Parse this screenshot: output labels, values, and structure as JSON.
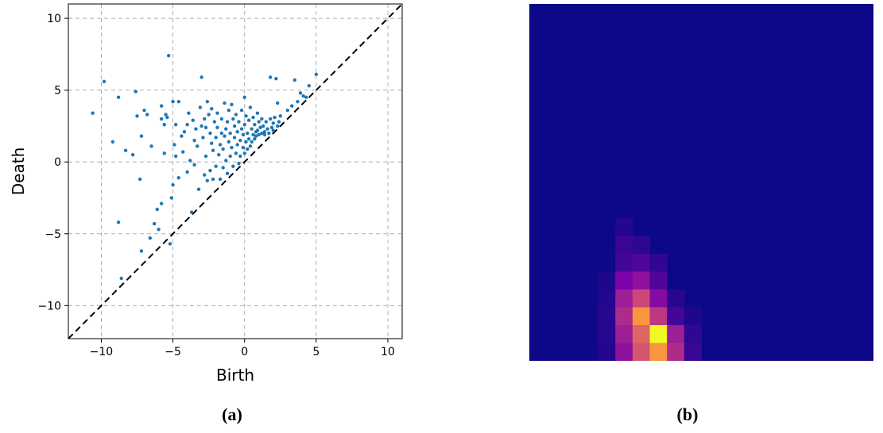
{
  "chart_data": [
    {
      "type": "scatter",
      "xlabel": "Birth",
      "ylabel": "Death",
      "xlim": [
        -12.3,
        11.0
      ],
      "ylim": [
        -12.3,
        11.0
      ],
      "xticks": [
        -10,
        -5,
        0,
        5,
        10
      ],
      "yticks": [
        -10,
        -5,
        0,
        5,
        10
      ],
      "grid": true,
      "diagonal": "dashed black line y = x",
      "point_color": "#1f77b4",
      "points": [
        [
          -10.6,
          3.4
        ],
        [
          -9.8,
          5.6
        ],
        [
          -9.2,
          1.4
        ],
        [
          -8.8,
          -4.2
        ],
        [
          -8.8,
          4.5
        ],
        [
          -8.6,
          -8.1
        ],
        [
          -8.3,
          0.8
        ],
        [
          -7.8,
          0.5
        ],
        [
          -7.6,
          4.9
        ],
        [
          -7.5,
          3.2
        ],
        [
          -7.3,
          -1.2
        ],
        [
          -7.2,
          -6.2
        ],
        [
          -7.2,
          1.8
        ],
        [
          -7.0,
          3.6
        ],
        [
          -6.8,
          3.3
        ],
        [
          -6.6,
          -5.3
        ],
        [
          -6.5,
          1.1
        ],
        [
          -6.3,
          -4.3
        ],
        [
          -6.1,
          -3.3
        ],
        [
          -6.0,
          -4.7
        ],
        [
          -5.8,
          -2.9
        ],
        [
          -5.8,
          3.0
        ],
        [
          -5.8,
          3.9
        ],
        [
          -5.6,
          2.6
        ],
        [
          -5.6,
          0.6
        ],
        [
          -5.5,
          3.3
        ],
        [
          -5.4,
          3.1
        ],
        [
          -5.3,
          7.4
        ],
        [
          -5.2,
          -5.7
        ],
        [
          -5.1,
          -2.5
        ],
        [
          -5.0,
          -1.6
        ],
        [
          -5.0,
          4.2
        ],
        [
          -4.9,
          1.2
        ],
        [
          -4.8,
          2.6
        ],
        [
          -4.8,
          0.4
        ],
        [
          -4.6,
          4.2
        ],
        [
          -4.6,
          -1.1
        ],
        [
          -4.4,
          1.8
        ],
        [
          -4.3,
          0.7
        ],
        [
          -4.2,
          2.1
        ],
        [
          -4.0,
          -0.7
        ],
        [
          -4.0,
          2.6
        ],
        [
          -3.9,
          3.4
        ],
        [
          -3.8,
          0.1
        ],
        [
          -3.7,
          -3.5
        ],
        [
          -3.6,
          2.9
        ],
        [
          -3.5,
          1.5
        ],
        [
          -3.5,
          -0.2
        ],
        [
          -3.4,
          2.3
        ],
        [
          -3.3,
          1.1
        ],
        [
          -3.2,
          -1.9
        ],
        [
          -3.1,
          3.8
        ],
        [
          -3.0,
          2.5
        ],
        [
          -3.0,
          5.9
        ],
        [
          -2.9,
          1.7
        ],
        [
          -2.8,
          -0.9
        ],
        [
          -2.8,
          3.0
        ],
        [
          -2.7,
          2.4
        ],
        [
          -2.7,
          0.4
        ],
        [
          -2.6,
          -1.3
        ],
        [
          -2.6,
          4.2
        ],
        [
          -2.5,
          3.3
        ],
        [
          -2.4,
          2.0
        ],
        [
          -2.4,
          -0.6
        ],
        [
          -2.3,
          1.3
        ],
        [
          -2.3,
          3.7
        ],
        [
          -2.2,
          -1.2
        ],
        [
          -2.2,
          0.8
        ],
        [
          -2.1,
          2.8
        ],
        [
          -2.0,
          1.7
        ],
        [
          -2.0,
          -0.3
        ],
        [
          -1.9,
          2.4
        ],
        [
          -1.9,
          3.4
        ],
        [
          -1.8,
          0.5
        ],
        [
          -1.7,
          -1.2
        ],
        [
          -1.7,
          1.2
        ],
        [
          -1.6,
          2.0
        ],
        [
          -1.6,
          3.0
        ],
        [
          -1.5,
          -0.4
        ],
        [
          -1.5,
          0.9
        ],
        [
          -1.4,
          1.8
        ],
        [
          -1.4,
          4.1
        ],
        [
          -1.3,
          2.3
        ],
        [
          -1.3,
          0.1
        ],
        [
          -1.2,
          2.8
        ],
        [
          -1.2,
          -0.8
        ],
        [
          -1.1,
          1.4
        ],
        [
          -1.1,
          3.6
        ],
        [
          -1.0,
          0.4
        ],
        [
          -1.0,
          2.0
        ],
        [
          -0.9,
          4.0
        ],
        [
          -0.9,
          1.0
        ],
        [
          -0.8,
          3.0
        ],
        [
          -0.8,
          -0.3
        ],
        [
          -0.7,
          1.7
        ],
        [
          -0.7,
          2.5
        ],
        [
          -0.6,
          0.6
        ],
        [
          -0.6,
          3.3
        ],
        [
          -0.5,
          1.2
        ],
        [
          -0.5,
          2.1
        ],
        [
          -0.4,
          -0.1
        ],
        [
          -0.4,
          2.8
        ],
        [
          -0.3,
          1.5
        ],
        [
          -0.3,
          0.4
        ],
        [
          -0.2,
          2.3
        ],
        [
          -0.2,
          3.6
        ],
        [
          -0.1,
          1.0
        ],
        [
          -0.1,
          1.9
        ],
        [
          0.0,
          0.6
        ],
        [
          0.0,
          2.6
        ],
        [
          0.0,
          4.5
        ],
        [
          0.1,
          1.4
        ],
        [
          0.1,
          3.2
        ],
        [
          0.2,
          2.0
        ],
        [
          0.2,
          0.9
        ],
        [
          0.3,
          2.9
        ],
        [
          0.3,
          1.6
        ],
        [
          0.4,
          1.1
        ],
        [
          0.4,
          3.8
        ],
        [
          0.5,
          2.3
        ],
        [
          0.5,
          1.4
        ],
        [
          0.6,
          1.9
        ],
        [
          0.6,
          3.1
        ],
        [
          0.7,
          1.6
        ],
        [
          0.7,
          2.6
        ],
        [
          0.8,
          2.1
        ],
        [
          0.8,
          1.8
        ],
        [
          0.9,
          3.4
        ],
        [
          0.9,
          2.2
        ],
        [
          1.0,
          1.9
        ],
        [
          1.0,
          2.8
        ],
        [
          1.1,
          2.4
        ],
        [
          1.2,
          2.0
        ],
        [
          1.2,
          3.0
        ],
        [
          1.3,
          2.5
        ],
        [
          1.4,
          2.1
        ],
        [
          1.4,
          1.9
        ],
        [
          1.5,
          2.8
        ],
        [
          1.6,
          2.3
        ],
        [
          1.7,
          2.0
        ],
        [
          1.8,
          3.0
        ],
        [
          1.8,
          5.9
        ],
        [
          1.9,
          2.4
        ],
        [
          2.0,
          2.2
        ],
        [
          2.0,
          2.7
        ],
        [
          2.1,
          3.1
        ],
        [
          2.2,
          5.8
        ],
        [
          2.3,
          2.5
        ],
        [
          2.3,
          4.1
        ],
        [
          2.4,
          2.8
        ],
        [
          2.5,
          3.2
        ],
        [
          3.0,
          3.6
        ],
        [
          3.3,
          3.9
        ],
        [
          3.5,
          5.7
        ],
        [
          3.7,
          4.2
        ],
        [
          3.9,
          4.8
        ],
        [
          4.1,
          4.6
        ],
        [
          4.3,
          4.5
        ],
        [
          4.5,
          5.3
        ],
        [
          5.0,
          6.1
        ]
      ]
    },
    {
      "type": "heatmap",
      "colormap": "plasma",
      "rows": 20,
      "cols": 20,
      "cells": [
        [
          12,
          5,
          0.05
        ],
        [
          13,
          5,
          0.1
        ],
        [
          13,
          6,
          0.07
        ],
        [
          14,
          5,
          0.12
        ],
        [
          14,
          6,
          0.15
        ],
        [
          14,
          7,
          0.08
        ],
        [
          15,
          4,
          0.04
        ],
        [
          15,
          5,
          0.25
        ],
        [
          15,
          6,
          0.3
        ],
        [
          15,
          7,
          0.15
        ],
        [
          16,
          4,
          0.05
        ],
        [
          16,
          5,
          0.35
        ],
        [
          16,
          6,
          0.5
        ],
        [
          16,
          7,
          0.28
        ],
        [
          16,
          8,
          0.06
        ],
        [
          17,
          4,
          0.06
        ],
        [
          17,
          5,
          0.4
        ],
        [
          17,
          6,
          0.75
        ],
        [
          17,
          7,
          0.45
        ],
        [
          17,
          8,
          0.12
        ],
        [
          17,
          9,
          0.04
        ],
        [
          18,
          4,
          0.06
        ],
        [
          18,
          5,
          0.35
        ],
        [
          18,
          6,
          0.6
        ],
        [
          18,
          7,
          1.0
        ],
        [
          18,
          8,
          0.35
        ],
        [
          18,
          9,
          0.08
        ],
        [
          19,
          4,
          0.05
        ],
        [
          19,
          5,
          0.3
        ],
        [
          19,
          6,
          0.55
        ],
        [
          19,
          7,
          0.75
        ],
        [
          19,
          8,
          0.4
        ],
        [
          19,
          9,
          0.1
        ]
      ]
    }
  ],
  "captions": {
    "a": "(a)",
    "b": "(b)"
  }
}
